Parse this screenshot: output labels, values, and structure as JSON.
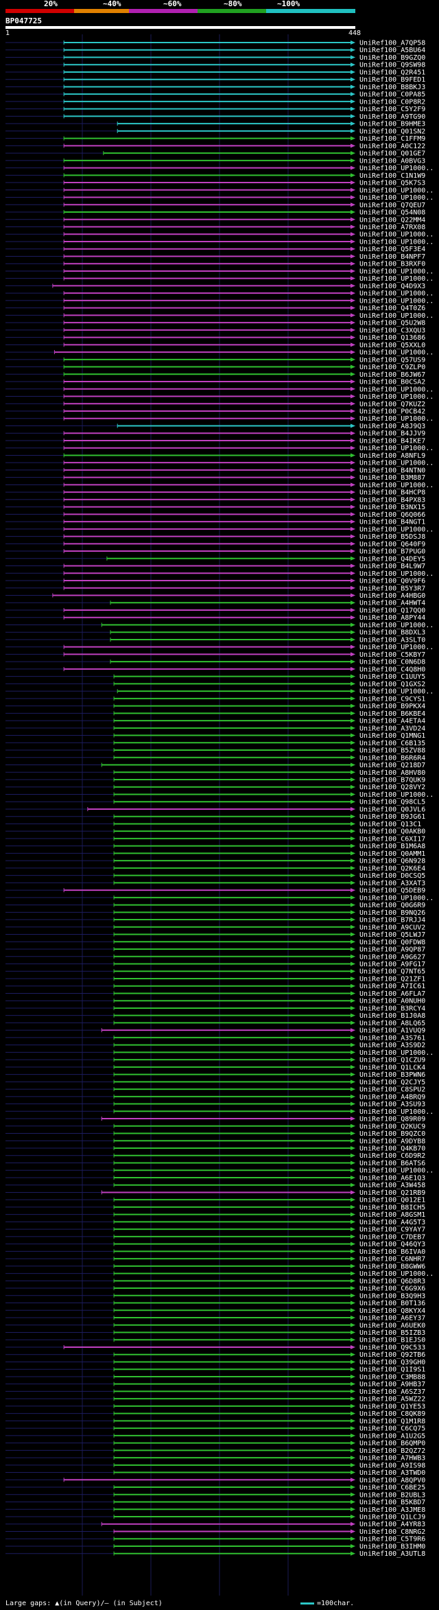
{
  "scale": {
    "labels": [
      "20%",
      "~40%",
      "~60%",
      "~80%",
      "~100%"
    ],
    "colors": [
      "#d00000",
      "#e08000",
      "#b020b0",
      "#20a020",
      "#20c0c0"
    ]
  },
  "query": {
    "name": "BP047725",
    "start": "1",
    "end": "448"
  },
  "footer": {
    "gaps_text": "Large gaps: ▲(in Query)/– (in Subject)",
    "legend_text": "=100char."
  },
  "hits": [
    {
      "label": "UniRef100_A7QP58",
      "color": "#2cc7c7",
      "start": 0.167
    },
    {
      "label": "UniRef100_A5BU64",
      "color": "#2cc7c7",
      "start": 0.167
    },
    {
      "label": "UniRef100_B9GZQ0",
      "color": "#2cc7c7",
      "start": 0.167
    },
    {
      "label": "UniRef100_Q9SW98",
      "color": "#2cc7c7",
      "start": 0.167
    },
    {
      "label": "UniRef100_Q2R451",
      "color": "#2cc7c7",
      "start": 0.167
    },
    {
      "label": "UniRef100_B9FED1",
      "color": "#2cc7c7",
      "start": 0.167
    },
    {
      "label": "UniRef100_B8BKJ3",
      "color": "#2cc7c7",
      "start": 0.167
    },
    {
      "label": "UniRef100_C0PA85",
      "color": "#2cc7c7",
      "start": 0.167
    },
    {
      "label": "UniRef100_C0P8R2",
      "color": "#2cc7c7",
      "start": 0.167
    },
    {
      "label": "UniRef100_C5Y2F9",
      "color": "#2cc7c7",
      "start": 0.167
    },
    {
      "label": "UniRef100_A9TG90",
      "color": "#2cc7c7",
      "start": 0.167
    },
    {
      "label": "UniRef100_B9HME3",
      "color": "#2cc7c7",
      "start": 0.32
    },
    {
      "label": "UniRef100_Q01SN2",
      "color": "#2cc7c7",
      "start": 0.32
    },
    {
      "label": "UniRef100_C1FFM9",
      "color": "#30c030",
      "start": 0.167
    },
    {
      "label": "UniRef100_A0C122",
      "color": "#c040c0",
      "start": 0.167
    },
    {
      "label": "UniRef100_Q01GE7",
      "color": "#30c030",
      "start": 0.28
    },
    {
      "label": "UniRef100_A0BVG3",
      "color": "#30c030",
      "start": 0.167
    },
    {
      "label": "UniRef100_UP1000..",
      "color": "#c040c0",
      "start": 0.167
    },
    {
      "label": "UniRef100_C1N1W9",
      "color": "#30c030",
      "start": 0.167
    },
    {
      "label": "UniRef100_Q5K7S3",
      "color": "#c040c0",
      "start": 0.167
    },
    {
      "label": "UniRef100_UP1000..",
      "color": "#c040c0",
      "start": 0.167
    },
    {
      "label": "UniRef100_UP1000..",
      "color": "#c040c0",
      "start": 0.167
    },
    {
      "label": "UniRef100_Q7QEU7",
      "color": "#c040c0",
      "start": 0.167
    },
    {
      "label": "UniRef100_Q54N08",
      "color": "#30c030",
      "start": 0.167
    },
    {
      "label": "UniRef100_Q22MM4",
      "color": "#c040c0",
      "start": 0.167
    },
    {
      "label": "UniRef100_A7RX08",
      "color": "#c040c0",
      "start": 0.167
    },
    {
      "label": "UniRef100_UP1000..",
      "color": "#c040c0",
      "start": 0.167
    },
    {
      "label": "UniRef100_UP1000..",
      "color": "#c040c0",
      "start": 0.167
    },
    {
      "label": "UniRef100_Q5F3E4",
      "color": "#c040c0",
      "start": 0.167
    },
    {
      "label": "UniRef100_B4NPF7",
      "color": "#c040c0",
      "start": 0.167
    },
    {
      "label": "UniRef100_B3RXF0",
      "color": "#c040c0",
      "start": 0.167
    },
    {
      "label": "UniRef100_UP1000..",
      "color": "#c040c0",
      "start": 0.167
    },
    {
      "label": "UniRef100_UP1000..",
      "color": "#c040c0",
      "start": 0.167
    },
    {
      "label": "UniRef100_Q4D9X3",
      "color": "#c040c0",
      "start": 0.135
    },
    {
      "label": "UniRef100_UP1000..",
      "color": "#c040c0",
      "start": 0.167
    },
    {
      "label": "UniRef100_UP1000..",
      "color": "#c040c0",
      "start": 0.167
    },
    {
      "label": "UniRef100_Q4T0Z6",
      "color": "#c040c0",
      "start": 0.167
    },
    {
      "label": "UniRef100_UP1000..",
      "color": "#c040c0",
      "start": 0.167
    },
    {
      "label": "UniRef100_Q5U2W8",
      "color": "#c040c0",
      "start": 0.167
    },
    {
      "label": "UniRef100_C3XQU3",
      "color": "#c040c0",
      "start": 0.167
    },
    {
      "label": "UniRef100_Q13686",
      "color": "#c040c0",
      "start": 0.167
    },
    {
      "label": "UniRef100_Q5XXL0",
      "color": "#c040c0",
      "start": 0.167
    },
    {
      "label": "UniRef100_UP1000..",
      "color": "#c040c0",
      "start": 0.14
    },
    {
      "label": "UniRef100_Q57US9",
      "color": "#30c030",
      "start": 0.167
    },
    {
      "label": "UniRef100_C9ZLP0",
      "color": "#30c030",
      "start": 0.167
    },
    {
      "label": "UniRef100_B6JW67",
      "color": "#30c030",
      "start": 0.167
    },
    {
      "label": "UniRef100_B0CSA2",
      "color": "#c040c0",
      "start": 0.167
    },
    {
      "label": "UniRef100_UP1000..",
      "color": "#c040c0",
      "start": 0.167
    },
    {
      "label": "UniRef100_UP1000..",
      "color": "#c040c0",
      "start": 0.167
    },
    {
      "label": "UniRef100_Q7KUZ2",
      "color": "#c040c0",
      "start": 0.167
    },
    {
      "label": "UniRef100_P0CB42",
      "color": "#c040c0",
      "start": 0.167
    },
    {
      "label": "UniRef100_UP1000..",
      "color": "#c040c0",
      "start": 0.167
    },
    {
      "label": "UniRef100_A8J9Q3",
      "color": "#2cc7c7",
      "start": 0.32
    },
    {
      "label": "UniRef100_B4JJV9",
      "color": "#c040c0",
      "start": 0.167
    },
    {
      "label": "UniRef100_B4IKE7",
      "color": "#c040c0",
      "start": 0.167
    },
    {
      "label": "UniRef100_UP1000..",
      "color": "#c040c0",
      "start": 0.167
    },
    {
      "label": "UniRef100_A8NFL9",
      "color": "#30c030",
      "start": 0.167
    },
    {
      "label": "UniRef100_UP1000..",
      "color": "#c040c0",
      "start": 0.167
    },
    {
      "label": "UniRef100_B4NTN0",
      "color": "#c040c0",
      "start": 0.167
    },
    {
      "label": "UniRef100_B3M887",
      "color": "#c040c0",
      "start": 0.167
    },
    {
      "label": "UniRef100_UP1000..",
      "color": "#c040c0",
      "start": 0.167
    },
    {
      "label": "UniRef100_B4HCP8",
      "color": "#c040c0",
      "start": 0.167
    },
    {
      "label": "UniRef100_B4PX83",
      "color": "#c040c0",
      "start": 0.167
    },
    {
      "label": "UniRef100_B3NX15",
      "color": "#c040c0",
      "start": 0.167
    },
    {
      "label": "UniRef100_Q6Q066",
      "color": "#c040c0",
      "start": 0.167
    },
    {
      "label": "UniRef100_B4NGT1",
      "color": "#c040c0",
      "start": 0.167
    },
    {
      "label": "UniRef100_UP1000..",
      "color": "#c040c0",
      "start": 0.167
    },
    {
      "label": "UniRef100_B5DSJ8",
      "color": "#c040c0",
      "start": 0.167
    },
    {
      "label": "UniRef100_Q640F9",
      "color": "#c040c0",
      "start": 0.167
    },
    {
      "label": "UniRef100_B7PUG0",
      "color": "#c040c0",
      "start": 0.167
    },
    {
      "label": "UniRef100_Q4DEY5",
      "color": "#30c030",
      "start": 0.29
    },
    {
      "label": "UniRef100_B4L9W7",
      "color": "#c040c0",
      "start": 0.167
    },
    {
      "label": "UniRef100_UP1000..",
      "color": "#c040c0",
      "start": 0.167
    },
    {
      "label": "UniRef100_Q0V9F6",
      "color": "#c040c0",
      "start": 0.167
    },
    {
      "label": "UniRef100_B5Y3R7",
      "color": "#c040c0",
      "start": 0.167
    },
    {
      "label": "UniRef100_A4HBG0",
      "color": "#c040c0",
      "start": 0.135
    },
    {
      "label": "UniRef100_A4HWT4",
      "color": "#30c030",
      "start": 0.3
    },
    {
      "label": "UniRef100_Q17QQ0",
      "color": "#c040c0",
      "start": 0.167
    },
    {
      "label": "UniRef100_A8PY44",
      "color": "#c040c0",
      "start": 0.167
    },
    {
      "label": "UniRef100_UP1000..",
      "color": "#30c030",
      "start": 0.275
    },
    {
      "label": "UniRef100_B8DXL3",
      "color": "#30c030",
      "start": 0.3
    },
    {
      "label": "UniRef100_A3SLT0",
      "color": "#30c030",
      "start": 0.3
    },
    {
      "label": "UniRef100_UP1000..",
      "color": "#c040c0",
      "start": 0.167
    },
    {
      "label": "UniRef100_C5KBY7",
      "color": "#c040c0",
      "start": 0.167
    },
    {
      "label": "UniRef100_C0N6D8",
      "color": "#30c030",
      "start": 0.3
    },
    {
      "label": "UniRef100_C4Q8H0",
      "color": "#c040c0",
      "start": 0.167
    },
    {
      "label": "UniRef100_C1UUY5",
      "color": "#30c030",
      "start": 0.31
    },
    {
      "label": "UniRef100_Q1GXS2",
      "color": "#30c030",
      "start": 0.31
    },
    {
      "label": "UniRef100_UP1000..",
      "color": "#30c030",
      "start": 0.32
    },
    {
      "label": "UniRef100_C9CYS1",
      "color": "#30c030",
      "start": 0.31
    },
    {
      "label": "UniRef100_B9PKX4",
      "color": "#30c030",
      "start": 0.31
    },
    {
      "label": "UniRef100_B6KBE4",
      "color": "#30c030",
      "start": 0.31
    },
    {
      "label": "UniRef100_A4ETA4",
      "color": "#30c030",
      "start": 0.31
    },
    {
      "label": "UniRef100_A3VD24",
      "color": "#30c030",
      "start": 0.31
    },
    {
      "label": "UniRef100_Q1MNG1",
      "color": "#30c030",
      "start": 0.31
    },
    {
      "label": "UniRef100_C6B135",
      "color": "#30c030",
      "start": 0.31
    },
    {
      "label": "UniRef100_B5ZV88",
      "color": "#30c030",
      "start": 0.31
    },
    {
      "label": "UniRef100_B6R6R4",
      "color": "#30c030",
      "start": 0.31
    },
    {
      "label": "UniRef100_Q218D7",
      "color": "#30c030",
      "start": 0.275
    },
    {
      "label": "UniRef100_A8HV80",
      "color": "#30c030",
      "start": 0.31
    },
    {
      "label": "UniRef100_B7QUK9",
      "color": "#30c030",
      "start": 0.31
    },
    {
      "label": "UniRef100_Q28VY2",
      "color": "#30c030",
      "start": 0.31
    },
    {
      "label": "UniRef100_UP1000..",
      "color": "#30c030",
      "start": 0.31
    },
    {
      "label": "UniRef100_Q98CL5",
      "color": "#30c030",
      "start": 0.31
    },
    {
      "label": "UniRef100_Q0JVL6",
      "color": "#c040c0",
      "start": 0.235
    },
    {
      "label": "UniRef100_B9JG61",
      "color": "#30c030",
      "start": 0.31
    },
    {
      "label": "UniRef100_Q13C1",
      "color": "#30c030",
      "start": 0.31
    },
    {
      "label": "UniRef100_Q0AKB0",
      "color": "#30c030",
      "start": 0.31
    },
    {
      "label": "UniRef100_C6XI17",
      "color": "#30c030",
      "start": 0.31
    },
    {
      "label": "UniRef100_B1M6A8",
      "color": "#30c030",
      "start": 0.31
    },
    {
      "label": "UniRef100_Q0AMM1",
      "color": "#30c030",
      "start": 0.31
    },
    {
      "label": "UniRef100_Q6N928",
      "color": "#30c030",
      "start": 0.31
    },
    {
      "label": "UniRef100_Q2K6E4",
      "color": "#30c030",
      "start": 0.31
    },
    {
      "label": "UniRef100_D0CSQ5",
      "color": "#30c030",
      "start": 0.31
    },
    {
      "label": "UniRef100_A3XAT3",
      "color": "#30c030",
      "start": 0.31
    },
    {
      "label": "UniRef100_Q5DEB9",
      "color": "#c040c0",
      "start": 0.167
    },
    {
      "label": "UniRef100_UP1000..",
      "color": "#30c030",
      "start": 0.31
    },
    {
      "label": "UniRef100_Q0G6R9",
      "color": "#30c030",
      "start": 0.31
    },
    {
      "label": "UniRef100_B9NQ26",
      "color": "#30c030",
      "start": 0.31
    },
    {
      "label": "UniRef100_B7RJJ4",
      "color": "#30c030",
      "start": 0.31
    },
    {
      "label": "UniRef100_A9CUV2",
      "color": "#30c030",
      "start": 0.31
    },
    {
      "label": "UniRef100_Q5LWJ7",
      "color": "#30c030",
      "start": 0.31
    },
    {
      "label": "UniRef100_Q0FDW8",
      "color": "#30c030",
      "start": 0.31
    },
    {
      "label": "UniRef100_A9QP87",
      "color": "#30c030",
      "start": 0.31
    },
    {
      "label": "UniRef100_A9G627",
      "color": "#30c030",
      "start": 0.31
    },
    {
      "label": "UniRef100_A9FG17",
      "color": "#30c030",
      "start": 0.31
    },
    {
      "label": "UniRef100_Q7NT65",
      "color": "#30c030",
      "start": 0.31
    },
    {
      "label": "UniRef100_Q21ZF1",
      "color": "#30c030",
      "start": 0.31
    },
    {
      "label": "UniRef100_A7IC61",
      "color": "#30c030",
      "start": 0.31
    },
    {
      "label": "UniRef100_A6FLA7",
      "color": "#30c030",
      "start": 0.31
    },
    {
      "label": "UniRef100_A0NUH0",
      "color": "#30c030",
      "start": 0.31
    },
    {
      "label": "UniRef100_B3RCY4",
      "color": "#30c030",
      "start": 0.31
    },
    {
      "label": "UniRef100_B1J0A8",
      "color": "#30c030",
      "start": 0.31
    },
    {
      "label": "UniRef100_A8LQ65",
      "color": "#30c030",
      "start": 0.31
    },
    {
      "label": "UniRef100_A1VUQ9",
      "color": "#c040c0",
      "start": 0.275
    },
    {
      "label": "UniRef100_A3S761",
      "color": "#30c030",
      "start": 0.31
    },
    {
      "label": "UniRef100_A3S9D2",
      "color": "#30c030",
      "start": 0.31
    },
    {
      "label": "UniRef100_UP1000..",
      "color": "#30c030",
      "start": 0.31
    },
    {
      "label": "UniRef100_Q1CZU9",
      "color": "#30c030",
      "start": 0.31
    },
    {
      "label": "UniRef100_Q1LCK4",
      "color": "#30c030",
      "start": 0.31
    },
    {
      "label": "UniRef100_B3PWN6",
      "color": "#30c030",
      "start": 0.31
    },
    {
      "label": "UniRef100_Q2CJY5",
      "color": "#30c030",
      "start": 0.31
    },
    {
      "label": "UniRef100_C8SPU2",
      "color": "#30c030",
      "start": 0.31
    },
    {
      "label": "UniRef100_A4BRQ9",
      "color": "#30c030",
      "start": 0.31
    },
    {
      "label": "UniRef100_A3SU93",
      "color": "#30c030",
      "start": 0.31
    },
    {
      "label": "UniRef100_UP1000..",
      "color": "#30c030",
      "start": 0.31
    },
    {
      "label": "UniRef100_Q89R09",
      "color": "#c040c0",
      "start": 0.275
    },
    {
      "label": "UniRef100_Q2KUC9",
      "color": "#30c030",
      "start": 0.31
    },
    {
      "label": "UniRef100_B9QZC0",
      "color": "#30c030",
      "start": 0.31
    },
    {
      "label": "UniRef100_A9DYB8",
      "color": "#30c030",
      "start": 0.31
    },
    {
      "label": "UniRef100_Q4KB70",
      "color": "#30c030",
      "start": 0.31
    },
    {
      "label": "UniRef100_C6D9R2",
      "color": "#30c030",
      "start": 0.31
    },
    {
      "label": "UniRef100_B6ATS6",
      "color": "#30c030",
      "start": 0.31
    },
    {
      "label": "UniRef100_UP1000..",
      "color": "#30c030",
      "start": 0.31
    },
    {
      "label": "UniRef100_A6E1Q3",
      "color": "#30c030",
      "start": 0.31
    },
    {
      "label": "UniRef100_A3W458",
      "color": "#30c030",
      "start": 0.31
    },
    {
      "label": "UniRef100_Q21RB9",
      "color": "#c040c0",
      "start": 0.275
    },
    {
      "label": "UniRef100_Q012E1",
      "color": "#30c030",
      "start": 0.31
    },
    {
      "label": "UniRef100_B8ICH5",
      "color": "#30c030",
      "start": 0.31
    },
    {
      "label": "UniRef100_A8GSM1",
      "color": "#30c030",
      "start": 0.31
    },
    {
      "label": "UniRef100_A4G5T3",
      "color": "#30c030",
      "start": 0.31
    },
    {
      "label": "UniRef100_C9YAY7",
      "color": "#30c030",
      "start": 0.31
    },
    {
      "label": "UniRef100_C7DEB7",
      "color": "#30c030",
      "start": 0.31
    },
    {
      "label": "UniRef100_Q46QY3",
      "color": "#30c030",
      "start": 0.31
    },
    {
      "label": "UniRef100_B6IVA0",
      "color": "#30c030",
      "start": 0.31
    },
    {
      "label": "UniRef100_C6NHR7",
      "color": "#30c030",
      "start": 0.31
    },
    {
      "label": "UniRef100_B8GWW6",
      "color": "#30c030",
      "start": 0.31
    },
    {
      "label": "UniRef100_UP1000..",
      "color": "#30c030",
      "start": 0.31
    },
    {
      "label": "UniRef100_Q6D8R3",
      "color": "#30c030",
      "start": 0.31
    },
    {
      "label": "UniRef100_C6G9X6",
      "color": "#30c030",
      "start": 0.31
    },
    {
      "label": "UniRef100_B3Q9H3",
      "color": "#30c030",
      "start": 0.31
    },
    {
      "label": "UniRef100_B0T136",
      "color": "#30c030",
      "start": 0.31
    },
    {
      "label": "UniRef100_Q8KYX4",
      "color": "#30c030",
      "start": 0.31
    },
    {
      "label": "UniRef100_A6EY37",
      "color": "#30c030",
      "start": 0.31
    },
    {
      "label": "UniRef100_A6UEK0",
      "color": "#30c030",
      "start": 0.31
    },
    {
      "label": "UniRef100_B5IZB3",
      "color": "#30c030",
      "start": 0.31
    },
    {
      "label": "UniRef100_B1EJS0",
      "color": "#30c030",
      "start": 0.31
    },
    {
      "label": "UniRef100_Q9C533",
      "color": "#c040c0",
      "start": 0.167
    },
    {
      "label": "UniRef100_Q92TB6",
      "color": "#30c030",
      "start": 0.31
    },
    {
      "label": "UniRef100_Q39GH0",
      "color": "#30c030",
      "start": 0.31
    },
    {
      "label": "UniRef100_Q1I9S1",
      "color": "#30c030",
      "start": 0.31
    },
    {
      "label": "UniRef100_C3MB88",
      "color": "#30c030",
      "start": 0.31
    },
    {
      "label": "UniRef100_A9HB37",
      "color": "#30c030",
      "start": 0.31
    },
    {
      "label": "UniRef100_A6SZ37",
      "color": "#30c030",
      "start": 0.31
    },
    {
      "label": "UniRef100_A5WZ22",
      "color": "#30c030",
      "start": 0.31
    },
    {
      "label": "UniRef100_Q1YE53",
      "color": "#30c030",
      "start": 0.31
    },
    {
      "label": "UniRef100_C8QK89",
      "color": "#30c030",
      "start": 0.31
    },
    {
      "label": "UniRef100_Q1M1R8",
      "color": "#30c030",
      "start": 0.31
    },
    {
      "label": "UniRef100_C6CQ75",
      "color": "#30c030",
      "start": 0.31
    },
    {
      "label": "UniRef100_A1U2G5",
      "color": "#30c030",
      "start": 0.31
    },
    {
      "label": "UniRef100_B6QMP0",
      "color": "#30c030",
      "start": 0.31
    },
    {
      "label": "UniRef100_B2QZ72",
      "color": "#30c030",
      "start": 0.31
    },
    {
      "label": "UniRef100_A7HWB3",
      "color": "#30c030",
      "start": 0.31
    },
    {
      "label": "UniRef100_A9IS98",
      "color": "#30c030",
      "start": 0.31
    },
    {
      "label": "UniRef100_A3TWD0",
      "color": "#30c030",
      "start": 0.31
    },
    {
      "label": "UniRef100_A8QPV0",
      "color": "#c040c0",
      "start": 0.167
    },
    {
      "label": "UniRef100_C6BE25",
      "color": "#30c030",
      "start": 0.31
    },
    {
      "label": "UniRef100_B2UBL3",
      "color": "#30c030",
      "start": 0.31
    },
    {
      "label": "UniRef100_B5KBD7",
      "color": "#30c030",
      "start": 0.31
    },
    {
      "label": "UniRef100_A3JME8",
      "color": "#30c030",
      "start": 0.31
    },
    {
      "label": "UniRef100_Q1LCJ9",
      "color": "#30c030",
      "start": 0.31
    },
    {
      "label": "UniRef100_A4YR83",
      "color": "#c040c0",
      "start": 0.275
    },
    {
      "label": "UniRef100_C8NRG2",
      "color": "#c040c0",
      "start": 0.31
    },
    {
      "label": "UniRef100_C5T9R6",
      "color": "#30c030",
      "start": 0.31
    },
    {
      "label": "UniRef100_B3IHM0",
      "color": "#30c030",
      "start": 0.31
    },
    {
      "label": "UniRef100_A3UTL8",
      "color": "#30c030",
      "start": 0.31
    }
  ]
}
